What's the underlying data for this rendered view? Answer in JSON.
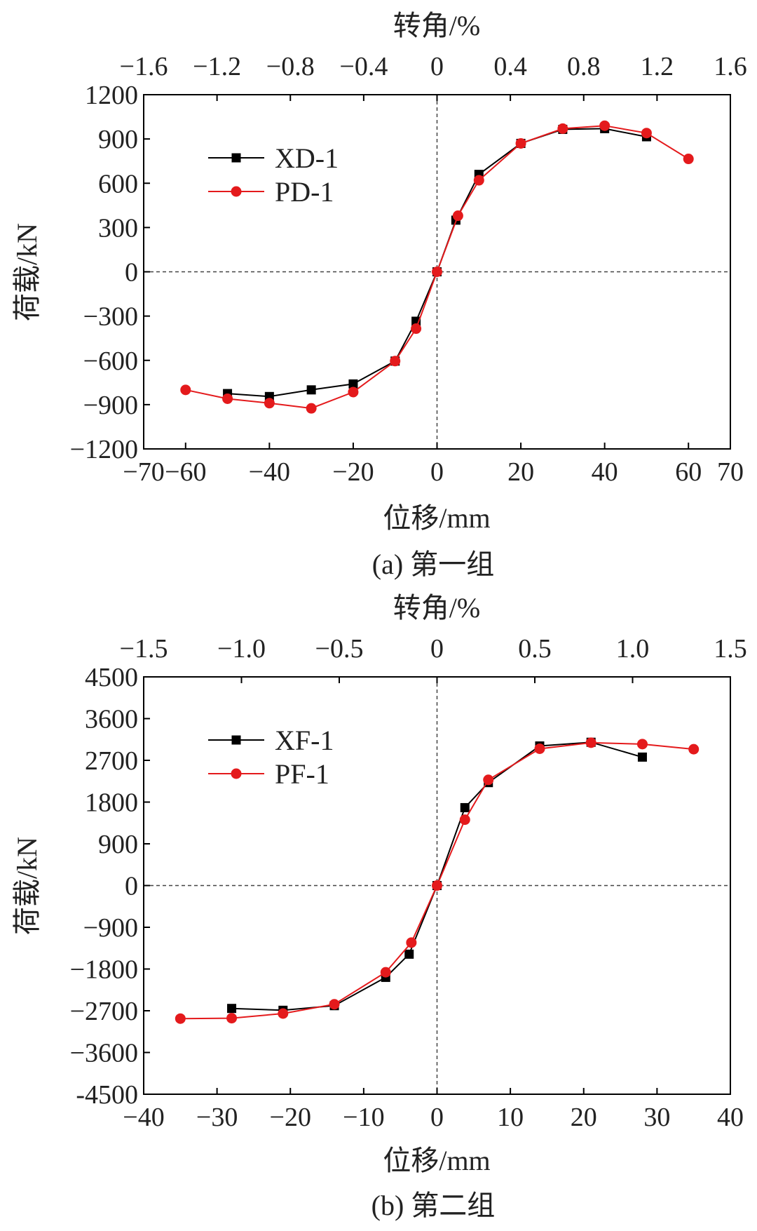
{
  "chart_data": [
    {
      "type": "line",
      "caption": "(a) 第一组",
      "xlabel": "位移/mm",
      "ylabel": "荷载/kN",
      "top_xlabel": "转角/%",
      "xlim": [
        -70,
        70
      ],
      "ylim": [
        -1200,
        1200
      ],
      "x_ticks": [
        -70,
        -60,
        -40,
        -20,
        0,
        20,
        40,
        60,
        70
      ],
      "x_tick_labels": [
        "−70",
        "−60",
        "−40",
        "−20",
        "0",
        "20",
        "40",
        "60",
        "70"
      ],
      "y_ticks": [
        -1200,
        -900,
        -600,
        -300,
        0,
        300,
        600,
        900,
        1200
      ],
      "y_tick_labels": [
        "−1200",
        "−900",
        "−600",
        "−300",
        "0",
        "300",
        "600",
        "900",
        "1200"
      ],
      "top_ticks": [
        -1.6,
        -1.2,
        -0.8,
        -0.4,
        0,
        0.4,
        0.8,
        1.2,
        1.6
      ],
      "top_tick_labels": [
        "−1.6",
        "−1.2",
        "−0.8",
        "−0.4",
        "0",
        "0.4",
        "0.8",
        "1.2",
        "1.6"
      ],
      "top_xlim": [
        -1.6,
        1.6
      ],
      "legend_position": "upper-left",
      "series": [
        {
          "name": "XD-1",
          "color": "#000000",
          "marker": "square",
          "points": [
            [
              -50,
              -825
            ],
            [
              -40,
              -845
            ],
            [
              -30,
              -800
            ],
            [
              -20,
              -760
            ],
            [
              -10,
              -605
            ],
            [
              -5,
              -335
            ],
            [
              0,
              0
            ],
            [
              4.5,
              350
            ],
            [
              10,
              660
            ],
            [
              20,
              870
            ],
            [
              30,
              965
            ],
            [
              40,
              970
            ],
            [
              50,
              915
            ]
          ]
        },
        {
          "name": "PD-1",
          "color": "#e41a1c",
          "marker": "circle",
          "points": [
            [
              -60,
              -800
            ],
            [
              -50,
              -860
            ],
            [
              -40,
              -890
            ],
            [
              -30,
              -925
            ],
            [
              -20,
              -815
            ],
            [
              -10,
              -605
            ],
            [
              -5,
              -385
            ],
            [
              0,
              0
            ],
            [
              5,
              380
            ],
            [
              10,
              620
            ],
            [
              20,
              870
            ],
            [
              30,
              970
            ],
            [
              40,
              990
            ],
            [
              50,
              940
            ],
            [
              60,
              765
            ]
          ]
        }
      ]
    },
    {
      "type": "line",
      "caption": "(b) 第二组",
      "xlabel": "位移/mm",
      "ylabel": "荷载/kN",
      "top_xlabel": "转角/%",
      "xlim": [
        -40,
        40
      ],
      "ylim": [
        -4500,
        4500
      ],
      "x_ticks": [
        -40,
        -30,
        -20,
        -10,
        0,
        10,
        20,
        30,
        40
      ],
      "x_tick_labels": [
        "−40",
        "−30",
        "−20",
        "−10",
        "0",
        "10",
        "20",
        "30",
        "40"
      ],
      "y_ticks": [
        -4500,
        -3600,
        -2700,
        -1800,
        -900,
        0,
        900,
        1800,
        2700,
        3600,
        4500
      ],
      "y_tick_labels": [
        "-4500",
        "−3600",
        "−2700",
        "−1800",
        "−900",
        "0",
        "900",
        "1800",
        "2700",
        "3600",
        "4500"
      ],
      "top_ticks": [
        -1.5,
        -1.0,
        -0.5,
        0,
        0.5,
        1.0,
        1.5
      ],
      "top_tick_labels": [
        "−1.5",
        "−1.0",
        "−0.5",
        "0",
        "0.5",
        "1.0",
        "1.5"
      ],
      "top_xlim": [
        -1.5,
        1.5
      ],
      "legend_position": "upper-left",
      "series": [
        {
          "name": "XF-1",
          "color": "#000000",
          "marker": "square",
          "points": [
            [
              -28,
              -2650
            ],
            [
              -21,
              -2690
            ],
            [
              -14,
              -2590
            ],
            [
              -7,
              -1980
            ],
            [
              -3.8,
              -1480
            ],
            [
              0,
              0
            ],
            [
              3.8,
              1680
            ],
            [
              7,
              2220
            ],
            [
              14,
              3010
            ],
            [
              21,
              3090
            ],
            [
              28,
              2770
            ]
          ]
        },
        {
          "name": "PF-1",
          "color": "#e41a1c",
          "marker": "circle",
          "points": [
            [
              -35,
              -2870
            ],
            [
              -28,
              -2860
            ],
            [
              -21,
              -2760
            ],
            [
              -14,
              -2560
            ],
            [
              -7,
              -1870
            ],
            [
              -3.5,
              -1230
            ],
            [
              0,
              0
            ],
            [
              3.8,
              1420
            ],
            [
              7,
              2280
            ],
            [
              14,
              2950
            ],
            [
              21,
              3080
            ],
            [
              28,
              3050
            ],
            [
              35,
              2940
            ]
          ]
        }
      ]
    }
  ]
}
